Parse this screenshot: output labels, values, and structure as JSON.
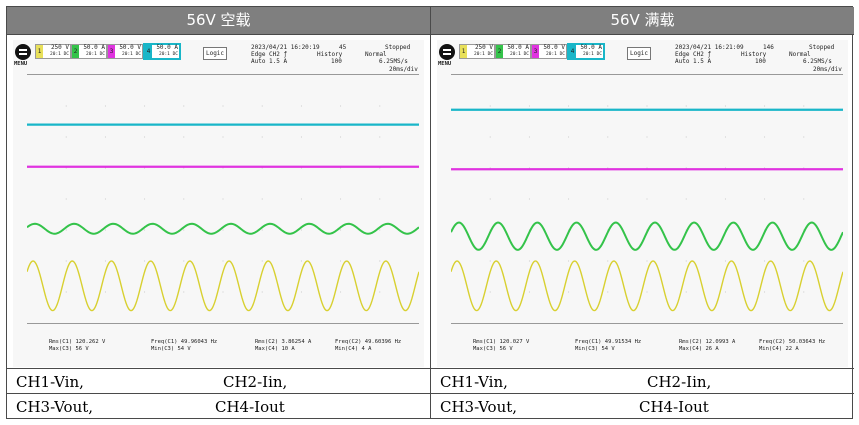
{
  "panels": [
    {
      "title": "56V 空载",
      "scope": {
        "menu_label": "MENU",
        "channels": [
          {
            "num": "1",
            "scale": "250 V",
            "bw": "20:1 DC",
            "color": "#e8e05a"
          },
          {
            "num": "2",
            "scale": "50.0 A",
            "bw": "20:1 DC",
            "color": "#34c34a"
          },
          {
            "num": "3",
            "scale": "50.0 V",
            "bw": "20:1 DC",
            "color": "#e033e0"
          },
          {
            "num": "4",
            "scale": "50.0 A",
            "bw": "20:1 DC",
            "color": "#19b6c8"
          }
        ],
        "logic_label": "Logic",
        "datetime": "2023/04/21 16:20:19",
        "count": "45",
        "status": "Stopped",
        "trigger": "Edge CH2 ƒ",
        "trigger_level": "Auto 1.5 A",
        "history_label": "History",
        "history_value": "100",
        "acq_mode": "Normal",
        "sample_rate": "6.25MS/s",
        "time_div": "20ms/div",
        "measurements": [
          "Rms(C1)   120.262 V",
          "Max(C3)   56 V",
          "Freq(C1)   49.96043 Hz",
          "Min(C3)   54 V",
          "Rms(C2)   3.86254 A",
          "Max(C4)   10 A",
          "Freq(C2)   49.60396 Hz",
          "Min(C4)   4 A"
        ]
      },
      "legend": [
        "CH1-Vin,",
        "CH2-Iin,",
        "CH3-Vout,",
        "CH4-Iout"
      ]
    },
    {
      "title": "56V 满载",
      "scope": {
        "menu_label": "MENU",
        "channels": [
          {
            "num": "1",
            "scale": "250 V",
            "bw": "20:1 DC",
            "color": "#e8e05a"
          },
          {
            "num": "2",
            "scale": "50.0 A",
            "bw": "20:1 DC",
            "color": "#34c34a"
          },
          {
            "num": "3",
            "scale": "50.0 V",
            "bw": "20:1 DC",
            "color": "#e033e0"
          },
          {
            "num": "4",
            "scale": "50.0 A",
            "bw": "20:1 DC",
            "color": "#19b6c8"
          }
        ],
        "logic_label": "Logic",
        "datetime": "2023/04/21 16:21:09",
        "count": "146",
        "status": "Stopped",
        "trigger": "Edge CH2 ƒ",
        "trigger_level": "Auto 1.5 A",
        "history_label": "History",
        "history_value": "100",
        "acq_mode": "Normal",
        "sample_rate": "6.25MS/s",
        "time_div": "20ms/div",
        "measurements": [
          "Rms(C1)   120.027 V",
          "Max(C3)   56 V",
          "Freq(C1)   49.91534 Hz",
          "Min(C3)   54 V",
          "Rms(C2)   12.0993 A",
          "Max(C4)   26 A",
          "Freq(C2)   50.03643 Hz",
          "Min(C4)   22 A"
        ]
      },
      "legend": [
        "CH1-Vin,",
        "CH2-Iin,",
        "CH3-Vout,",
        "CH4-Iout"
      ]
    }
  ],
  "waveforms": [
    {
      "cyan_level": 0.2,
      "cyan_fuzz": 1,
      "magenta_level": 0.37,
      "green_center": 0.62,
      "green_amp": 0.02,
      "yellow_center": 0.85,
      "yellow_amp": 0.1,
      "cycles": 10
    },
    {
      "cyan_level": 0.14,
      "cyan_fuzz": 0.5,
      "magenta_level": 0.38,
      "green_center": 0.65,
      "green_amp": 0.055,
      "yellow_center": 0.85,
      "yellow_amp": 0.1,
      "cycles": 10
    }
  ]
}
